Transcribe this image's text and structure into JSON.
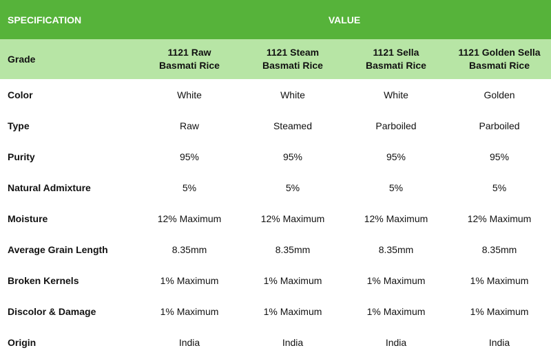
{
  "header": {
    "specification": "SPECIFICATION",
    "value": "VALUE"
  },
  "grade": {
    "label": "Grade",
    "columns": [
      [
        "1121 Raw",
        "Basmati Rice"
      ],
      [
        "1121 Steam",
        "Basmati Rice"
      ],
      [
        "1121 Sella",
        "Basmati Rice"
      ],
      [
        "1121 Golden Sella",
        "Basmati Rice"
      ]
    ]
  },
  "rows": [
    {
      "label": "Color",
      "values": [
        "White",
        "White",
        "White",
        "Golden"
      ]
    },
    {
      "label": "Type",
      "values": [
        "Raw",
        "Steamed",
        "Parboiled",
        "Parboiled"
      ]
    },
    {
      "label": "Purity",
      "values": [
        "95%",
        "95%",
        "95%",
        "95%"
      ]
    },
    {
      "label": "Natural Admixture",
      "values": [
        "5%",
        "5%",
        "5%",
        "5%"
      ]
    },
    {
      "label": "Moisture",
      "values": [
        "12% Maximum",
        "12% Maximum",
        "12% Maximum",
        "12% Maximum"
      ]
    },
    {
      "label": "Average Grain Length",
      "values": [
        "8.35mm",
        "8.35mm",
        "8.35mm",
        "8.35mm"
      ]
    },
    {
      "label": "Broken Kernels",
      "values": [
        "1% Maximum",
        "1% Maximum",
        "1% Maximum",
        "1% Maximum"
      ]
    },
    {
      "label": "Discolor & Damage",
      "values": [
        "1% Maximum",
        "1% Maximum",
        "1% Maximum",
        "1% Maximum"
      ]
    },
    {
      "label": "Origin",
      "values": [
        "India",
        "India",
        "India",
        "India"
      ]
    }
  ],
  "colors": {
    "header_bg": "#56b33a",
    "grade_bg": "#b7e5a5"
  }
}
